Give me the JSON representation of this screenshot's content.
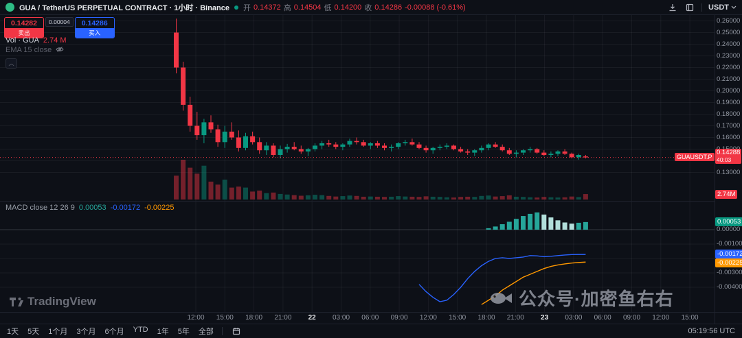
{
  "header": {
    "symbol_title": "GUA / TetherUS PERPETUAL CONTRACT · 1小时 · Binance",
    "ohlc": {
      "open_label": "开",
      "open": "0.14372",
      "high_label": "高",
      "high": "0.14504",
      "low_label": "低",
      "low": "0.14200",
      "close_label": "收",
      "close": "0.14286",
      "change": "-0.00088 (-0.61%)"
    },
    "currency": "USDT"
  },
  "order_widget": {
    "sell_price": "0.14282",
    "sell_label": "卖出",
    "spread": "0.00004",
    "buy_price": "0.14286",
    "buy_label": "买入"
  },
  "legend": {
    "volume": {
      "title": "Vol · GUA",
      "value": "2.74 M"
    },
    "ema": {
      "title": "EMA 15 close"
    },
    "macd": {
      "title": "MACD close 12 26 9",
      "hist_value": "0.00053",
      "macd_value": "-0.00172",
      "signal_value": "-0.00225"
    }
  },
  "price_axis": {
    "main_labels": [
      "0.26000",
      "0.25000",
      "0.24000",
      "0.23000",
      "0.22000",
      "0.21000",
      "0.20000",
      "0.19000",
      "0.18000",
      "0.17000",
      "0.16000",
      "0.15000",
      "0.14000",
      "0.13000"
    ],
    "current_price": "0.14288",
    "countdown": "40:03",
    "symbol_tag": "GUAUSDT.P",
    "volume_tag": "2.74M",
    "macd_labels": [
      "0.00000",
      "-0.00100",
      "-0.00200",
      "-0.00300",
      "-0.00400"
    ],
    "macd_hist_tag": "0.00053",
    "macd_line_tag": "-0.00172",
    "macd_signal_tag": "-0.00225"
  },
  "time_axis": {
    "labels": [
      "12:00",
      "15:00",
      "18:00",
      "21:00",
      "22",
      "03:00",
      "06:00",
      "09:00",
      "12:00",
      "15:00",
      "18:00",
      "21:00",
      "23",
      "03:00",
      "06:00",
      "09:00",
      "12:00",
      "15:00"
    ]
  },
  "toolbar": {
    "ranges": [
      "1天",
      "5天",
      "1个月",
      "3个月",
      "6个月",
      "YTD",
      "1年",
      "5年",
      "全部"
    ],
    "clock": "05:19:56 UTC"
  },
  "watermark": {
    "tv": "TradingView",
    "cn": "公众号·加密鱼右右"
  },
  "colors": {
    "up": "#089981",
    "down": "#f23645",
    "vol_up": "rgba(8,153,129,0.45)",
    "vol_down": "rgba(242,54,69,0.45)",
    "blue": "#2962ff",
    "orange": "#ff9800",
    "hist_grow": "#26a69a",
    "hist_fall": "#b2dfdb",
    "grid": "rgba(134,137,147,0.10)"
  },
  "chart_data": {
    "type": "candlestick",
    "symbol": "GUAUSDT.P",
    "exchange": "Binance",
    "interval": "1小时",
    "price_range_hint": [
      0.106,
      0.265
    ],
    "columns": [
      "open",
      "high",
      "low",
      "close",
      "volume_millions"
    ],
    "candles": [
      [
        0.25,
        0.262,
        0.215,
        0.22,
        12
      ],
      [
        0.22,
        0.225,
        0.183,
        0.188,
        20
      ],
      [
        0.188,
        0.195,
        0.165,
        0.17,
        16
      ],
      [
        0.17,
        0.182,
        0.158,
        0.162,
        13
      ],
      [
        0.162,
        0.176,
        0.155,
        0.173,
        17
      ],
      [
        0.173,
        0.179,
        0.164,
        0.167,
        9
      ],
      [
        0.167,
        0.171,
        0.152,
        0.156,
        7.5
      ],
      [
        0.156,
        0.17,
        0.151,
        0.165,
        10
      ],
      [
        0.165,
        0.173,
        0.158,
        0.16,
        6
      ],
      [
        0.16,
        0.166,
        0.148,
        0.151,
        6.5
      ],
      [
        0.151,
        0.164,
        0.149,
        0.161,
        6
      ],
      [
        0.161,
        0.165,
        0.154,
        0.156,
        4
      ],
      [
        0.156,
        0.16,
        0.146,
        0.149,
        4.5
      ],
      [
        0.149,
        0.156,
        0.145,
        0.153,
        3.2
      ],
      [
        0.153,
        0.155,
        0.143,
        0.145,
        3.5
      ],
      [
        0.145,
        0.153,
        0.142,
        0.15,
        2.8
      ],
      [
        0.15,
        0.1545,
        0.147,
        0.152,
        2.5
      ],
      [
        0.152,
        0.156,
        0.149,
        0.15,
        2.2
      ],
      [
        0.15,
        0.153,
        0.146,
        0.148,
        1.9
      ],
      [
        0.148,
        0.151,
        0.144,
        0.15,
        2.1
      ],
      [
        0.15,
        0.155,
        0.148,
        0.153,
        2.4
      ],
      [
        0.153,
        0.157,
        0.15,
        0.155,
        2.2
      ],
      [
        0.155,
        0.158,
        0.152,
        0.154,
        1.8
      ],
      [
        0.154,
        0.156,
        0.15,
        0.152,
        1.5
      ],
      [
        0.152,
        0.155,
        0.149,
        0.154,
        1.7
      ],
      [
        0.154,
        0.159,
        0.152,
        0.157,
        2.0
      ],
      [
        0.157,
        0.16,
        0.154,
        0.156,
        1.8
      ],
      [
        0.156,
        0.158,
        0.152,
        0.153,
        1.4
      ],
      [
        0.153,
        0.156,
        0.15,
        0.155,
        1.5
      ],
      [
        0.155,
        0.157,
        0.151,
        0.153,
        1.4
      ],
      [
        0.153,
        0.155,
        0.149,
        0.151,
        1.3
      ],
      [
        0.151,
        0.154,
        0.148,
        0.152,
        1.4
      ],
      [
        0.152,
        0.156,
        0.15,
        0.155,
        1.7
      ],
      [
        0.155,
        0.158,
        0.153,
        0.156,
        1.5
      ],
      [
        0.156,
        0.159,
        0.153,
        0.154,
        1.4
      ],
      [
        0.154,
        0.156,
        0.15,
        0.151,
        1.3
      ],
      [
        0.151,
        0.153,
        0.147,
        0.149,
        1.6
      ],
      [
        0.149,
        0.152,
        0.146,
        0.151,
        1.4
      ],
      [
        0.151,
        0.154,
        0.149,
        0.152,
        1.3
      ],
      [
        0.152,
        0.155,
        0.15,
        0.153,
        1.1
      ],
      [
        0.153,
        0.154,
        0.149,
        0.15,
        1.0
      ],
      [
        0.15,
        0.152,
        0.147,
        0.148,
        1.3
      ],
      [
        0.148,
        0.15,
        0.145,
        0.147,
        1.4
      ],
      [
        0.147,
        0.15,
        0.144,
        0.149,
        1.3
      ],
      [
        0.149,
        0.153,
        0.147,
        0.151,
        1.8
      ],
      [
        0.151,
        0.155,
        0.149,
        0.154,
        2.0
      ],
      [
        0.154,
        0.156,
        0.151,
        0.152,
        1.5
      ],
      [
        0.152,
        0.154,
        0.148,
        0.149,
        1.7
      ],
      [
        0.149,
        0.151,
        0.145,
        0.146,
        2.1
      ],
      [
        0.146,
        0.149,
        0.143,
        0.147,
        1.4
      ],
      [
        0.147,
        0.15,
        0.145,
        0.149,
        1.3
      ],
      [
        0.149,
        0.152,
        0.147,
        0.15,
        1.1
      ],
      [
        0.15,
        0.151,
        0.146,
        0.147,
        1.0
      ],
      [
        0.147,
        0.149,
        0.144,
        0.145,
        1.3
      ],
      [
        0.145,
        0.148,
        0.143,
        0.146,
        1.1
      ],
      [
        0.146,
        0.149,
        0.144,
        0.148,
        1.0
      ],
      [
        0.148,
        0.15,
        0.145,
        0.146,
        1.1
      ],
      [
        0.146,
        0.147,
        0.142,
        0.143,
        1.5
      ],
      [
        0.143,
        0.146,
        0.141,
        0.145,
        1.2
      ],
      [
        0.14372,
        0.14504,
        0.142,
        0.14286,
        2.74
      ]
    ],
    "macd": {
      "macd_start_index": 35,
      "macd_line": [
        -0.0038,
        -0.0043,
        -0.0047,
        -0.005,
        -0.0049,
        -0.0045,
        -0.004,
        -0.0034,
        -0.0029,
        -0.0025,
        -0.0022,
        -0.002,
        -0.00195,
        -0.002,
        -0.00195,
        -0.0019,
        -0.0018,
        -0.00182,
        -0.00188,
        -0.00185,
        -0.0018,
        -0.00176,
        -0.00173,
        -0.00172,
        -0.00172
      ],
      "signal_start_index": 44,
      "signal_line": [
        -0.0052,
        -0.0049,
        -0.0046,
        -0.0042,
        -0.0039,
        -0.0036,
        -0.0033,
        -0.0031,
        -0.0029,
        -0.0027,
        -0.00255,
        -0.00245,
        -0.00238,
        -0.00232,
        -0.00228,
        -0.00225
      ],
      "hist_start_index": 45,
      "hist": [
        0.0001,
        0.00022,
        0.00038,
        0.00055,
        0.00075,
        0.00095,
        0.0011,
        0.0012,
        0.00105,
        0.00085,
        0.00065,
        0.0005,
        0.00042,
        0.00048,
        0.00053
      ]
    }
  }
}
